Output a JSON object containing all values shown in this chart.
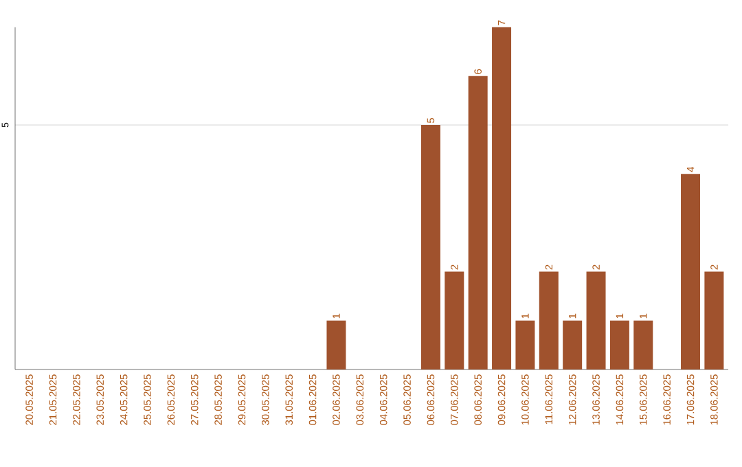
{
  "chart_data": {
    "type": "bar",
    "categories": [
      "20.05.2025",
      "21.05.2025",
      "22.05.2025",
      "23.05.2025",
      "24.05.2025",
      "25.05.2025",
      "26.05.2025",
      "27.05.2025",
      "28.05.2025",
      "29.05.2025",
      "30.05.2025",
      "31.05.2025",
      "01.06.2025",
      "02.06.2025",
      "03.06.2025",
      "04.06.2025",
      "05.06.2025",
      "06.06.2025",
      "07.06.2025",
      "08.06.2025",
      "09.06.2025",
      "10.06.2025",
      "11.06.2025",
      "12.06.2025",
      "13.06.2025",
      "14.06.2025",
      "15.06.2025",
      "16.06.2025",
      "17.06.2025",
      "18.06.2025"
    ],
    "values": [
      null,
      null,
      null,
      null,
      null,
      null,
      null,
      null,
      null,
      null,
      null,
      null,
      null,
      1,
      null,
      null,
      null,
      5,
      2,
      6,
      7,
      1,
      2,
      1,
      2,
      1,
      1,
      null,
      4,
      2
    ],
    "data_labels": true,
    "color": "#a0522d",
    "ylim": [
      0,
      7
    ],
    "yticks": [
      5
    ],
    "grid": "y"
  }
}
